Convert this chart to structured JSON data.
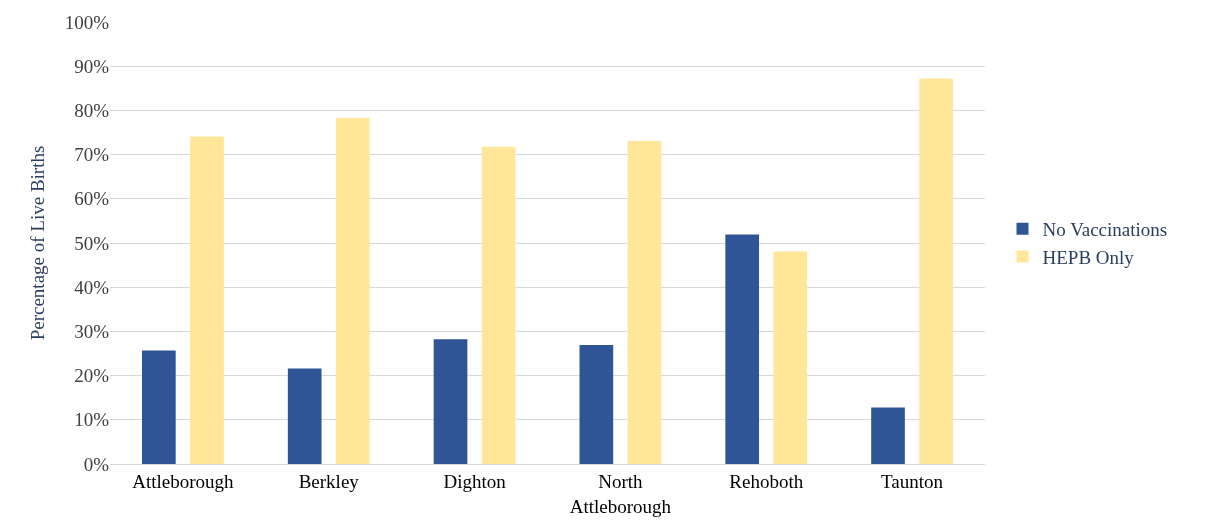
{
  "chart_data": {
    "type": "bar",
    "ylabel": "Percentage of Live Births",
    "categories": [
      "Attleborough",
      "Berkley",
      "Dighton",
      "North Attleborough",
      "Rehoboth",
      "Taunton"
    ],
    "series": [
      {
        "name": "No Vaccinations",
        "color": "#2f5597",
        "values": [
          25.7,
          21.6,
          28.2,
          26.9,
          51.9,
          12.8
        ]
      },
      {
        "name": "HEPB Only",
        "color": "#ffe699",
        "values": [
          74.1,
          78.3,
          71.8,
          73.1,
          48.1,
          87.2
        ]
      }
    ],
    "ylim": [
      0,
      100
    ],
    "yticks": [
      {
        "value": 0,
        "label": "0%"
      },
      {
        "value": 10,
        "label": "10%"
      },
      {
        "value": 20,
        "label": "20%"
      },
      {
        "value": 30,
        "label": "30%"
      },
      {
        "value": 40,
        "label": "40%"
      },
      {
        "value": 50,
        "label": "50%"
      },
      {
        "value": 60,
        "label": "60%"
      },
      {
        "value": 70,
        "label": "70%"
      },
      {
        "value": 80,
        "label": "80%"
      },
      {
        "value": 90,
        "label": "90%"
      },
      {
        "value": 100,
        "label": "100%"
      }
    ],
    "grid": "y",
    "legend": "right"
  }
}
